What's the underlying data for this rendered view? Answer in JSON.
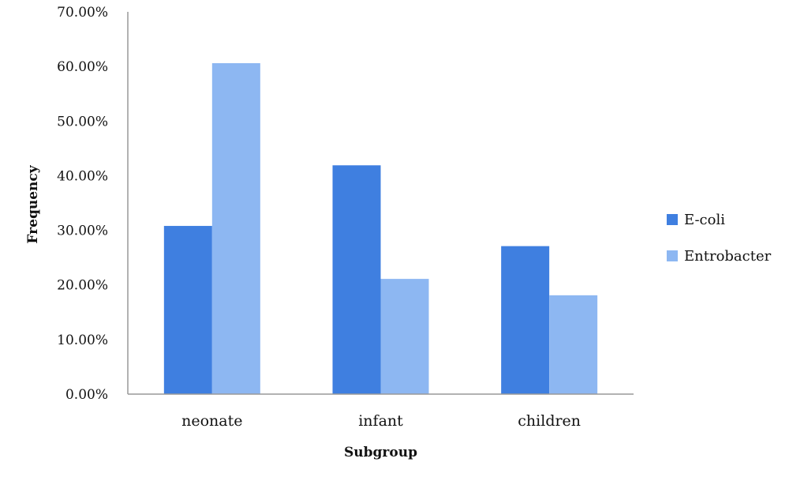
{
  "chart_data": {
    "type": "bar",
    "categories": [
      "neonate",
      "infant",
      "children"
    ],
    "series": [
      {
        "name": "E-coli",
        "values": [
          30.8,
          41.9,
          27.1
        ],
        "color": "#3f7fe0"
      },
      {
        "name": "Entrobacter",
        "values": [
          60.6,
          21.1,
          18.1
        ],
        "color": "#8db7f2"
      }
    ],
    "xlabel": "Subgroup",
    "ylabel": "Frequency",
    "ylim": [
      0,
      70
    ],
    "yticks": [
      "0.00%",
      "10.00%",
      "20.00%",
      "30.00%",
      "40.00%",
      "50.00%",
      "60.00%",
      "70.00%"
    ],
    "grid": false,
    "legend_position": "right"
  }
}
